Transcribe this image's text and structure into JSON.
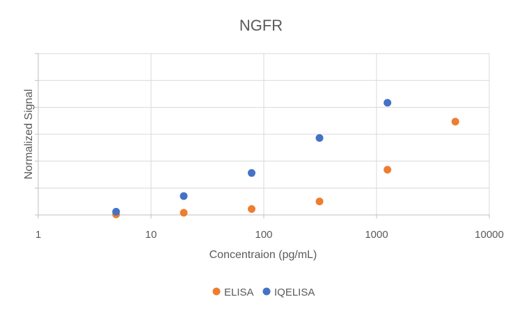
{
  "chart_data": {
    "type": "scatter",
    "title": "NGFR",
    "xlabel": "Concentraion (pg/mL)",
    "ylabel": "Normalized Signal",
    "x_scale": "log10",
    "xlim": [
      1,
      10000
    ],
    "x_ticks": [
      "1",
      "10",
      "100",
      "1000",
      "10000"
    ],
    "ylim": [
      0,
      6
    ],
    "y_tick_labels_shown": false,
    "grid": true,
    "legend_position": "bottom",
    "series": [
      {
        "name": "ELISA",
        "color": "#ED7D31",
        "points": [
          {
            "x": 4.9,
            "y": 0.02
          },
          {
            "x": 19.5,
            "y": 0.08
          },
          {
            "x": 78,
            "y": 0.22
          },
          {
            "x": 312,
            "y": 0.5
          },
          {
            "x": 1250,
            "y": 1.68
          },
          {
            "x": 5000,
            "y": 3.47
          }
        ]
      },
      {
        "name": "IQELISA",
        "color": "#4472C4",
        "points": [
          {
            "x": 4.9,
            "y": 0.12
          },
          {
            "x": 19.5,
            "y": 0.7
          },
          {
            "x": 78,
            "y": 1.56
          },
          {
            "x": 312,
            "y": 2.86
          },
          {
            "x": 1250,
            "y": 4.17
          }
        ]
      }
    ]
  }
}
